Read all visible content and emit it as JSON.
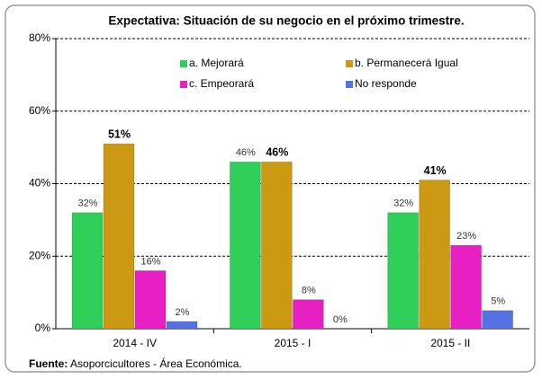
{
  "chart_data": {
    "type": "bar",
    "title": "Expectativa:  Situación de su negocio en el próximo trimestre.",
    "categories": [
      "2014 - IV",
      "2015 - I",
      "2015 - II"
    ],
    "series": [
      {
        "name": "a. Mejorará",
        "color": "#2fcf5a",
        "values": [
          32,
          46,
          32
        ],
        "value_labels": [
          "32%",
          "46%",
          "32%"
        ]
      },
      {
        "name": "b. Permanecerá Igual",
        "color": "#cc9a12",
        "values": [
          51,
          46,
          41
        ],
        "value_labels": [
          "51%",
          "46%",
          "41%"
        ]
      },
      {
        "name": "c. Empeorará",
        "color": "#e620c2",
        "values": [
          16,
          8,
          23
        ],
        "value_labels": [
          "16%",
          "8%",
          "23%"
        ]
      },
      {
        "name": "No responde",
        "color": "#5472e2",
        "values": [
          2,
          0,
          5
        ],
        "value_labels": [
          "2%",
          "0%",
          "5%"
        ]
      }
    ],
    "ylim": [
      0,
      80
    ],
    "yticks": [
      {
        "value": 0,
        "label": "0%"
      },
      {
        "value": 20,
        "label": "20%"
      },
      {
        "value": 40,
        "label": "40%"
      },
      {
        "value": 60,
        "label": "60%"
      },
      {
        "value": 80,
        "label": "80%"
      }
    ],
    "grid": true,
    "source_label": "Fuente:",
    "source": " Asoporcicultores - Área Económica."
  }
}
